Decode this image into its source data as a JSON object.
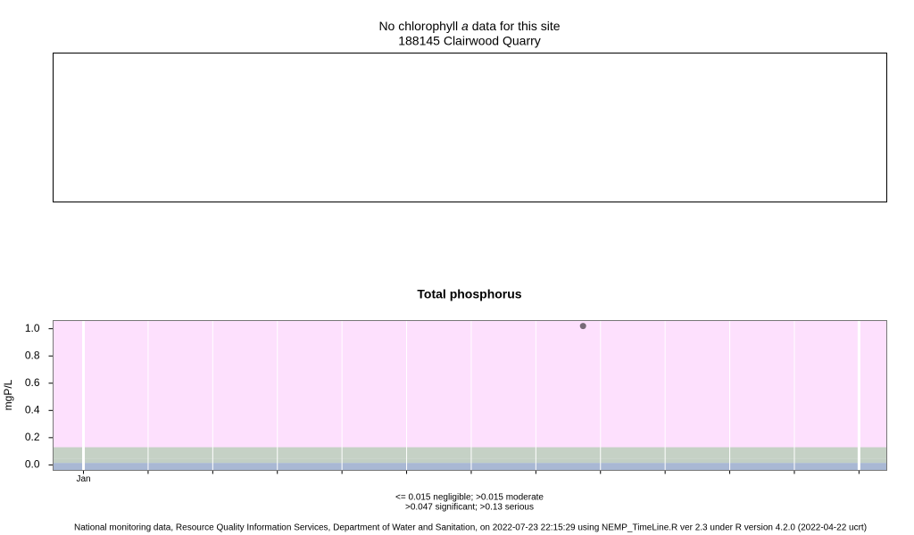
{
  "top_panel": {
    "title_parts": [
      "No chlorophyll",
      "a",
      "data for this site"
    ],
    "subtitle": "188145 Clairwood Quarry"
  },
  "chart_data": {
    "type": "scatter",
    "title": "Total phosphorus",
    "y_label": "mgP/L",
    "x": [
      7.73
    ],
    "values": [
      1.02
    ],
    "color": "#776a77",
    "xlim": [
      -0.47,
      12.43
    ],
    "xticks": [
      0,
      1,
      2,
      3,
      4,
      5,
      6,
      7,
      8,
      9,
      10,
      11,
      12
    ],
    "xtick_labels": [
      "Jan",
      null,
      null,
      null,
      null,
      null,
      null,
      null,
      null,
      null,
      null,
      null,
      null
    ],
    "ylim": [
      -0.04,
      1.06
    ],
    "yticks": [
      {
        "value": 0,
        "label": "0.0"
      },
      0.2,
      0.4,
      0.6,
      0.8,
      {
        "value": 1,
        "label": "1.0"
      }
    ],
    "thresholds": [
      0.015,
      0.047,
      0.13
    ],
    "band_colors": [
      "#a9b8d4",
      "#c2cfc4",
      "#c5d1c5",
      "#fde0fd"
    ],
    "grid": true,
    "legend_lines": [
      "<= 0.015 negligible; >0.015 moderate",
      ">0.047 significant; >0.13 serious"
    ],
    "footer": "National monitoring data, Resource Quality Information Services, Department of Water and Sanitation, on 2022-07-23 22:15:29 using NEMP_TimeLine.R ver 2.3 under R version 4.2.0 (2022-04-22 ucrt)"
  }
}
